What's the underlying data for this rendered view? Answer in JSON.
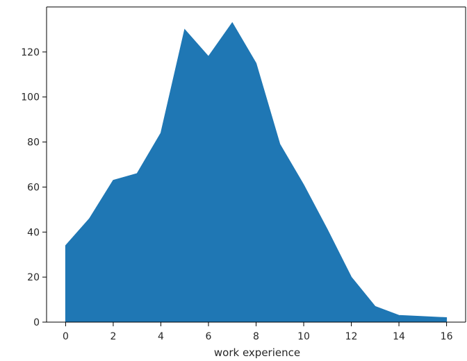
{
  "chart_data": {
    "type": "area",
    "title": "",
    "xlabel": "work experience",
    "ylabel": "",
    "x": [
      0,
      1,
      2,
      3,
      4,
      5,
      6,
      7,
      8,
      9,
      10,
      11,
      12,
      13,
      14,
      15,
      16
    ],
    "series": [
      {
        "values": [
          34,
          46,
          63,
          66,
          84,
          130,
          118,
          133,
          115,
          79,
          61,
          41,
          20,
          7,
          3,
          2.5,
          2
        ],
        "color": "#1f77b4"
      }
    ],
    "xlim": [
      -0.8,
      16.8
    ],
    "ylim": [
      0,
      140
    ],
    "xticks": [
      "0",
      "2",
      "4",
      "6",
      "8",
      "10",
      "12",
      "14",
      "16"
    ],
    "yticks": [
      "0",
      "20",
      "40",
      "60",
      "80",
      "100",
      "120"
    ],
    "grid": false,
    "legend": "none"
  }
}
